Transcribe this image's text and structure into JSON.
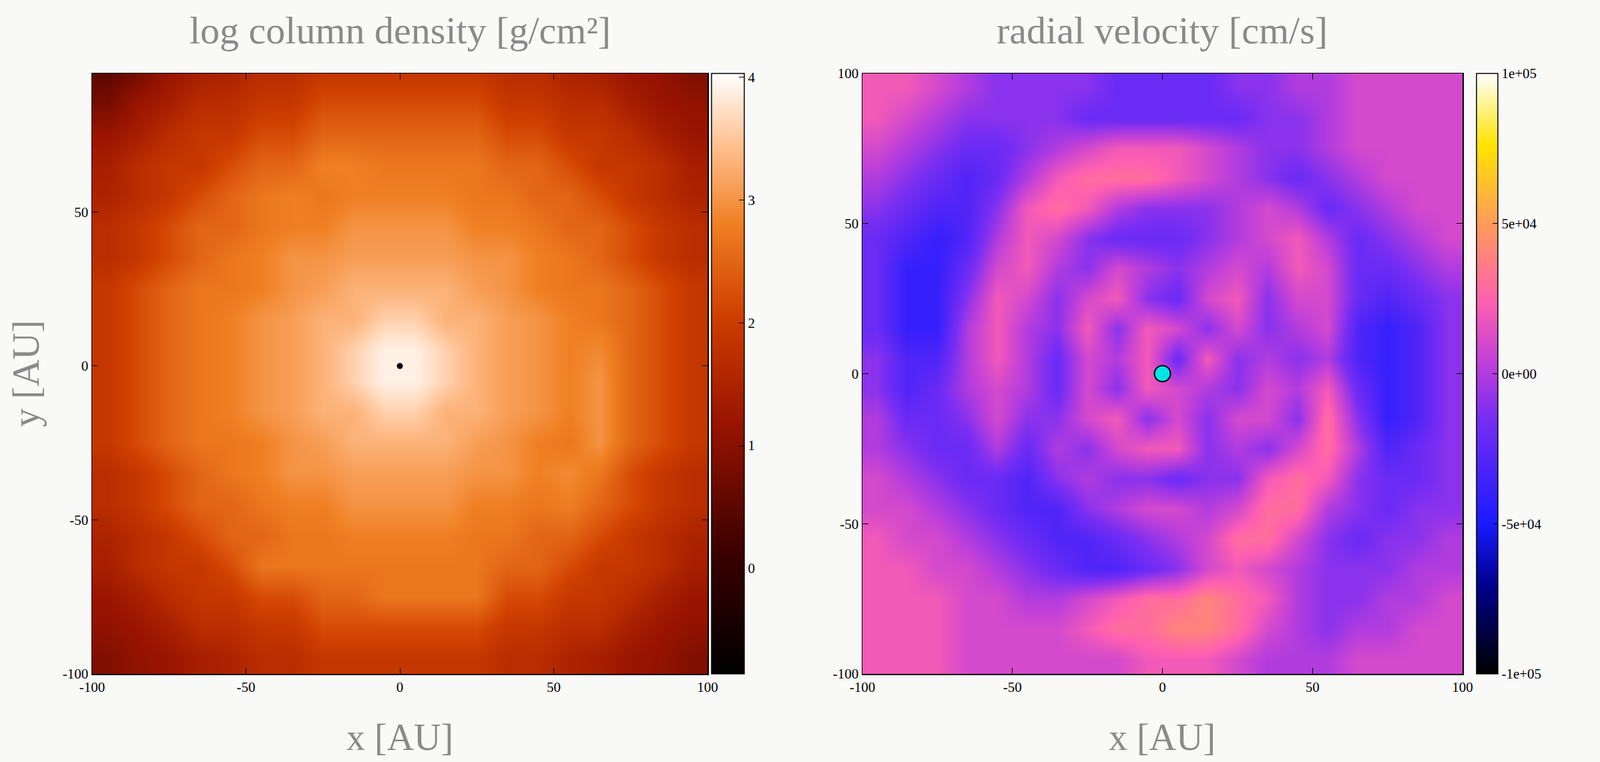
{
  "chart_data": [
    {
      "type": "heatmap",
      "title": "log column density [g/cm²]",
      "x_label": "x [AU]",
      "y_label": "y [AU]",
      "x": [
        -95,
        -85,
        -75,
        -65,
        -55,
        -45,
        -35,
        -25,
        -15,
        -5,
        5,
        15,
        25,
        35,
        45,
        55,
        65,
        75,
        85,
        95
      ],
      "y": [
        -95,
        -85,
        -75,
        -65,
        -55,
        -45,
        -35,
        -25,
        -15,
        -5,
        5,
        15,
        25,
        35,
        45,
        55,
        65,
        75,
        85,
        95
      ],
      "z": [
        [
          0.9,
          1.1,
          1.2,
          1.4,
          1.5,
          1.7,
          1.7,
          1.9,
          1.9,
          1.9,
          1.9,
          1.9,
          1.9,
          1.7,
          1.7,
          1.5,
          1.4,
          1.2,
          1.1,
          0.9
        ],
        [
          1.1,
          1.2,
          1.4,
          1.7,
          1.7,
          1.9,
          1.9,
          2.2,
          2.2,
          2.2,
          2.2,
          2.2,
          2.2,
          1.9,
          1.9,
          1.7,
          1.7,
          1.4,
          1.2,
          1.1
        ],
        [
          1.2,
          1.4,
          1.7,
          1.9,
          1.9,
          2.2,
          2.2,
          2.5,
          2.5,
          2.7,
          2.7,
          2.7,
          2.7,
          2.2,
          2.2,
          1.9,
          1.9,
          1.7,
          1.4,
          1.2
        ],
        [
          1.4,
          1.7,
          1.9,
          1.9,
          2.2,
          2.7,
          2.7,
          2.7,
          2.7,
          2.7,
          2.7,
          2.7,
          2.7,
          2.5,
          2.5,
          2.2,
          1.9,
          1.9,
          1.7,
          1.4
        ],
        [
          1.5,
          1.7,
          1.9,
          2.2,
          2.5,
          2.5,
          2.7,
          2.7,
          2.8,
          2.8,
          2.8,
          2.8,
          2.7,
          2.7,
          2.5,
          2.5,
          2.2,
          1.9,
          1.7,
          1.5
        ],
        [
          1.7,
          1.9,
          2.2,
          2.5,
          2.5,
          2.7,
          2.8,
          2.8,
          3.0,
          3.0,
          3.0,
          3.0,
          2.8,
          2.8,
          2.7,
          2.8,
          2.5,
          2.2,
          1.9,
          1.7
        ],
        [
          1.7,
          1.9,
          2.2,
          2.5,
          2.7,
          2.8,
          3.0,
          3.0,
          3.1,
          3.1,
          3.1,
          3.1,
          3.0,
          3.0,
          2.8,
          2.9,
          2.7,
          2.2,
          1.9,
          1.7
        ],
        [
          1.9,
          2.2,
          2.5,
          2.7,
          2.7,
          2.8,
          3.0,
          3.1,
          3.3,
          3.3,
          3.3,
          3.3,
          3.1,
          3.0,
          2.8,
          2.7,
          3.0,
          2.5,
          2.2,
          1.9
        ],
        [
          1.9,
          2.2,
          2.5,
          2.7,
          2.8,
          3.0,
          3.1,
          3.3,
          3.3,
          3.6,
          3.6,
          3.3,
          3.3,
          3.1,
          3.0,
          2.8,
          3.0,
          2.5,
          2.2,
          1.9
        ],
        [
          1.9,
          2.2,
          2.5,
          2.7,
          2.8,
          3.0,
          3.1,
          3.3,
          3.6,
          3.9,
          3.9,
          3.6,
          3.3,
          3.1,
          3.0,
          2.8,
          3.0,
          2.5,
          2.2,
          1.9
        ],
        [
          1.9,
          2.2,
          2.5,
          2.7,
          2.8,
          3.0,
          3.1,
          3.3,
          3.6,
          3.9,
          3.9,
          3.6,
          3.3,
          3.1,
          3.0,
          2.8,
          2.9,
          2.5,
          2.2,
          1.9
        ],
        [
          1.9,
          2.2,
          2.5,
          2.7,
          2.8,
          3.0,
          3.1,
          3.3,
          3.3,
          3.6,
          3.6,
          3.3,
          3.3,
          3.1,
          3.0,
          2.8,
          2.7,
          2.5,
          2.2,
          1.9
        ],
        [
          1.9,
          2.2,
          2.5,
          2.7,
          2.7,
          2.8,
          3.0,
          3.1,
          3.3,
          3.3,
          3.3,
          3.3,
          3.1,
          3.0,
          2.8,
          2.7,
          2.7,
          2.5,
          2.2,
          1.9
        ],
        [
          1.7,
          1.9,
          2.2,
          2.5,
          2.7,
          2.8,
          3.0,
          3.0,
          3.1,
          3.1,
          3.1,
          3.1,
          3.0,
          3.0,
          2.8,
          2.7,
          2.5,
          2.2,
          1.9,
          1.7
        ],
        [
          1.7,
          1.9,
          2.2,
          2.5,
          2.5,
          2.7,
          2.8,
          2.8,
          3.0,
          3.0,
          3.0,
          3.0,
          2.8,
          2.8,
          2.7,
          2.5,
          2.5,
          2.2,
          1.9,
          1.7
        ],
        [
          1.5,
          1.7,
          1.9,
          2.2,
          2.5,
          2.7,
          2.8,
          2.7,
          2.8,
          2.8,
          2.8,
          2.8,
          2.7,
          2.7,
          2.5,
          2.5,
          2.2,
          1.9,
          1.7,
          1.5
        ],
        [
          1.4,
          1.7,
          1.9,
          1.9,
          2.2,
          2.5,
          2.5,
          2.8,
          2.8,
          2.7,
          2.7,
          2.7,
          2.7,
          2.5,
          2.5,
          2.2,
          1.9,
          1.9,
          1.7,
          1.4
        ],
        [
          1.2,
          1.4,
          1.7,
          1.9,
          1.9,
          2.2,
          2.2,
          2.5,
          2.5,
          2.5,
          2.5,
          2.5,
          2.5,
          2.2,
          2.2,
          1.9,
          1.9,
          1.7,
          1.4,
          1.2
        ],
        [
          0.8,
          1.2,
          1.4,
          1.7,
          1.7,
          1.9,
          1.9,
          2.2,
          2.2,
          2.2,
          2.2,
          2.2,
          2.2,
          1.9,
          1.9,
          1.7,
          1.7,
          1.4,
          1.2,
          1.1
        ],
        [
          0.5,
          0.8,
          1.2,
          1.4,
          1.5,
          1.7,
          1.7,
          1.9,
          1.9,
          1.9,
          1.9,
          1.9,
          1.9,
          1.7,
          1.7,
          1.5,
          1.4,
          1.2,
          1.1,
          0.9
        ]
      ],
      "xlim": [
        -100,
        100
      ],
      "ylim": [
        -100,
        95
      ],
      "xticks": [
        -100,
        -50,
        0,
        50,
        100
      ],
      "yticks": [
        -100,
        -50,
        0,
        50
      ],
      "colorbar": {
        "range": [
          -0.86,
          4.03
        ],
        "ticks": [
          0,
          1,
          2,
          3,
          4
        ]
      },
      "markers": [
        {
          "x": 0,
          "y": 0,
          "color": "#000000"
        }
      ]
    },
    {
      "type": "heatmap",
      "title": "radial velocity [cm/s]",
      "x_label": "x [AU]",
      "x": [
        -95,
        -85,
        -75,
        -65,
        -55,
        -45,
        -35,
        -25,
        -15,
        -5,
        5,
        15,
        25,
        35,
        45,
        55,
        65,
        75,
        85,
        95
      ],
      "y": [
        -95,
        -85,
        -75,
        -65,
        -55,
        -45,
        -35,
        -25,
        -15,
        -5,
        5,
        15,
        25,
        35,
        45,
        55,
        65,
        75,
        85,
        95
      ],
      "z": [
        [
          20000.0,
          20000.0,
          20000.0,
          10000.0,
          10000.0,
          10000.0,
          10000.0,
          10000.0,
          10000.0,
          20000.0,
          20000.0,
          20000.0,
          10000.0,
          0,
          0,
          0,
          10000.0,
          10000.0,
          10000.0,
          10000.0
        ],
        [
          20000.0,
          20000.0,
          20000.0,
          10000.0,
          10000.0,
          10000.0,
          10000.0,
          20000.0,
          30000.0,
          30000.0,
          40000.0,
          40000.0,
          30000.0,
          10000.0,
          0,
          -10000.0,
          0,
          0,
          10000.0,
          10000.0
        ],
        [
          20000.0,
          20000.0,
          20000.0,
          10000.0,
          10000.0,
          0,
          0,
          10000.0,
          20000.0,
          30000.0,
          30000.0,
          40000.0,
          30000.0,
          20000.0,
          0,
          -10000.0,
          -10000.0,
          0,
          0,
          10000.0
        ],
        [
          20000.0,
          20000.0,
          10000.0,
          10000.0,
          0,
          -10000.0,
          -20000.0,
          -30000.0,
          -30000.0,
          -20000.0,
          -10000.0,
          10000.0,
          20000.0,
          10000.0,
          0,
          -10000.0,
          -10000.0,
          -10000.0,
          0,
          0
        ],
        [
          20000.0,
          10000.0,
          10000.0,
          0,
          -10000.0,
          -20000.0,
          -30000.0,
          -30000.0,
          -20000.0,
          -10000.0,
          0,
          10000.0,
          30000.0,
          30000.0,
          10000.0,
          -10000.0,
          -20000.0,
          -10000.0,
          -10000.0,
          0
        ],
        [
          10000.0,
          10000.0,
          0,
          -10000.0,
          -20000.0,
          -30000.0,
          -30000.0,
          -10000.0,
          0,
          10000.0,
          10000.0,
          0,
          10000.0,
          30000.0,
          30000.0,
          0,
          -10000.0,
          -20000.0,
          -10000.0,
          -10000.0
        ],
        [
          10000.0,
          0,
          -10000.0,
          -20000.0,
          -20000.0,
          -30000.0,
          -10000.0,
          0,
          -10000.0,
          -10000.0,
          -20000.0,
          -10000.0,
          -10000.0,
          20000.0,
          30000.0,
          20000.0,
          -10000.0,
          -20000.0,
          -20000.0,
          -10000.0
        ],
        [
          0,
          -10000.0,
          -20000.0,
          -20000.0,
          0,
          -20000.0,
          0,
          -10000.0,
          10000.0,
          20000.0,
          20000.0,
          -10000.0,
          0,
          -10000.0,
          10000.0,
          30000.0,
          0,
          -30000.0,
          -20000.0,
          -10000.0
        ],
        [
          0,
          -20000.0,
          -20000.0,
          -10000.0,
          10000.0,
          -10000.0,
          -10000.0,
          10000.0,
          20000.0,
          -10000.0,
          10000.0,
          -10000.0,
          10000.0,
          10000.0,
          -10000.0,
          30000.0,
          -10000.0,
          -40000.0,
          -30000.0,
          -10000.0
        ],
        [
          -10000.0,
          -30000.0,
          -20000.0,
          0,
          10000.0,
          0,
          -20000.0,
          10000.0,
          -10000.0,
          20000.0,
          10000.0,
          0,
          -10000.0,
          10000.0,
          0,
          20000.0,
          -20000.0,
          -40000.0,
          -30000.0,
          -10000.0
        ],
        [
          -10000.0,
          -30000.0,
          -30000.0,
          0,
          20000.0,
          0,
          -20000.0,
          10000.0,
          0,
          20000.0,
          -20000.0,
          20000.0,
          -10000.0,
          0,
          -10000.0,
          0,
          -30000.0,
          -40000.0,
          -30000.0,
          -10000.0
        ],
        [
          -20000.0,
          -40000.0,
          -40000.0,
          0,
          20000.0,
          0,
          -10000.0,
          20000.0,
          -10000.0,
          20000.0,
          10000.0,
          -10000.0,
          10000.0,
          -10000.0,
          0,
          10000.0,
          -30000.0,
          -40000.0,
          -30000.0,
          -10000.0
        ],
        [
          -20000.0,
          -40000.0,
          -40000.0,
          -10000.0,
          20000.0,
          10000.0,
          -10000.0,
          10000.0,
          20000.0,
          -10000.0,
          -20000.0,
          10000.0,
          20000.0,
          -10000.0,
          10000.0,
          10000.0,
          -20000.0,
          -30000.0,
          -20000.0,
          -10000.0
        ],
        [
          -20000.0,
          -40000.0,
          -40000.0,
          -20000.0,
          10000.0,
          20000.0,
          0,
          -10000.0,
          10000.0,
          0,
          -10000.0,
          0,
          10000.0,
          0,
          20000.0,
          10000.0,
          -20000.0,
          -20000.0,
          -10000.0,
          0
        ],
        [
          -20000.0,
          -30000.0,
          -40000.0,
          -30000.0,
          0,
          20000.0,
          10000.0,
          -10000.0,
          -20000.0,
          -20000.0,
          -20000.0,
          -10000.0,
          0,
          10000.0,
          20000.0,
          0,
          -20000.0,
          -10000.0,
          0,
          10000.0
        ],
        [
          -10000.0,
          -20000.0,
          -30000.0,
          -30000.0,
          -10000.0,
          20000.0,
          30000.0,
          20000.0,
          0,
          -10000.0,
          -10000.0,
          -10000.0,
          0,
          10000.0,
          0,
          -20000.0,
          -10000.0,
          0,
          10000.0,
          10000.0
        ],
        [
          0,
          -10000.0,
          -20000.0,
          -30000.0,
          -20000.0,
          0,
          20000.0,
          30000.0,
          30000.0,
          30000.0,
          20000.0,
          10000.0,
          0,
          -10000.0,
          -20000.0,
          -10000.0,
          0,
          10000.0,
          10000.0,
          10000.0
        ],
        [
          10000.0,
          0,
          -10000.0,
          -20000.0,
          -20000.0,
          -10000.0,
          0,
          10000.0,
          20000.0,
          20000.0,
          20000.0,
          10000.0,
          0,
          -10000.0,
          -10000.0,
          0,
          10000.0,
          10000.0,
          10000.0,
          10000.0
        ],
        [
          20000.0,
          10000.0,
          0,
          -10000.0,
          -10000.0,
          -10000.0,
          -10000.0,
          -20000.0,
          -20000.0,
          -20000.0,
          -20000.0,
          -20000.0,
          -20000.0,
          -10000.0,
          -10000.0,
          0,
          10000.0,
          10000.0,
          10000.0,
          10000.0
        ],
        [
          20000.0,
          20000.0,
          10000.0,
          0,
          -10000.0,
          -10000.0,
          -10000.0,
          -10000.0,
          -20000.0,
          -20000.0,
          -20000.0,
          -20000.0,
          -10000.0,
          -10000.0,
          0,
          0,
          10000.0,
          10000.0,
          10000.0,
          10000.0
        ]
      ],
      "xlim": [
        -100,
        100
      ],
      "ylim": [
        -100,
        100
      ],
      "xticks": [
        -100,
        -50,
        0,
        50,
        100
      ],
      "yticks": [
        -100,
        -50,
        0,
        50,
        100
      ],
      "colorbar": {
        "range": [
          -100000,
          100000
        ],
        "ticks": [
          {
            "value": -100000,
            "label": "-1e+05"
          },
          {
            "value": -50000,
            "label": "-5e+04"
          },
          {
            "value": 0,
            "label": "0e+00"
          },
          {
            "value": 50000,
            "label": "5e+04"
          },
          {
            "value": 100000,
            "label": "1e+05"
          }
        ]
      },
      "markers": [
        {
          "x": 0,
          "y": 0,
          "color": "#00e5e5"
        }
      ]
    }
  ]
}
